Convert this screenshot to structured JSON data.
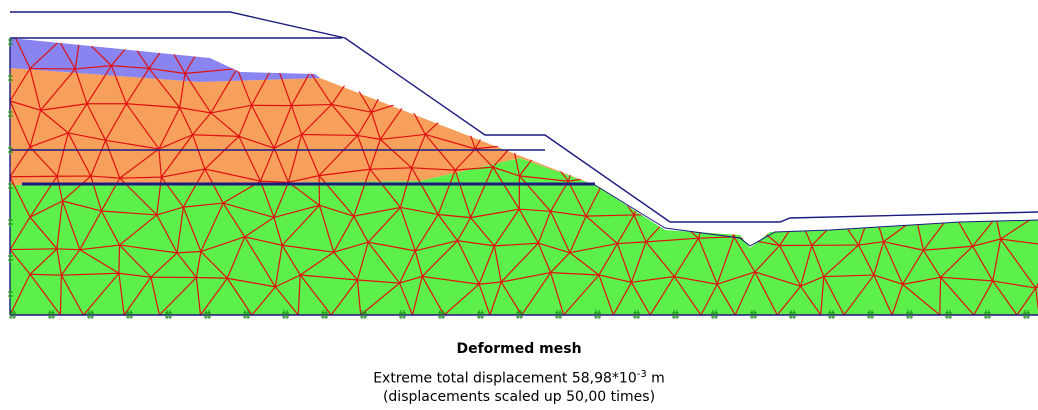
{
  "caption": {
    "title": "Deformed mesh",
    "displacement_prefix": "Extreme total displacement 58,98*10",
    "displacement_exponent": "-3",
    "displacement_unit": "m",
    "scale_note": "(displacements scaled up 50,00 times)"
  }
}
